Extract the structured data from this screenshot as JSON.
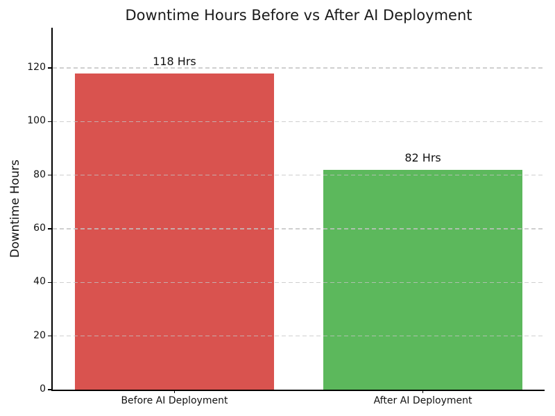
{
  "chart_data": {
    "type": "bar",
    "title": "Downtime Hours Before vs After AI Deployment",
    "ylabel": "Downtime Hours",
    "xlabel": "",
    "categories": [
      "Before AI Deployment",
      "After AI Deployment"
    ],
    "values": [
      118,
      82
    ],
    "bar_labels": [
      "118 Hrs",
      "82 Hrs"
    ],
    "bar_colors": [
      "#d9534f",
      "#5cb85c"
    ],
    "yticks": [
      0,
      20,
      40,
      60,
      80,
      100,
      120
    ],
    "ylim": [
      0,
      135
    ],
    "xlim": [
      -0.49,
      1.49
    ],
    "bar_width": 0.8,
    "grid": {
      "axis": "y",
      "style": "dashed",
      "color": "#c3c3c3"
    },
    "legend": "none"
  },
  "colors": {
    "background": "#ffffff",
    "spine": "#000000",
    "tick": "#000000",
    "title_text": "#1a1a1a",
    "label_text": "#111111"
  }
}
